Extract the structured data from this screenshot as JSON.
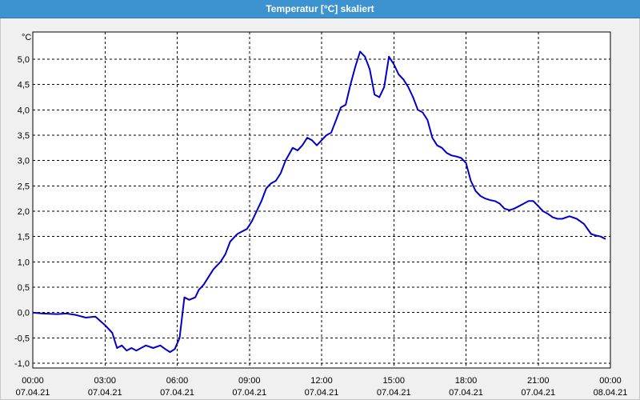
{
  "window": {
    "title": "Temperatur [°C] skaliert"
  },
  "colors": {
    "titlebar": "#3d93cf",
    "line": "#0000cc",
    "grid": "#000000",
    "background": "#f0f0f0"
  },
  "chart_data": {
    "type": "line",
    "title": "Temperatur [°C] skaliert",
    "ylabel": "°C",
    "xlabel": "",
    "ylim": [
      -1.0,
      5.5
    ],
    "xlim": [
      0,
      24
    ],
    "grid": true,
    "y_ticks": [
      "5,0",
      "4,5",
      "4,0",
      "3,5",
      "3,0",
      "2,5",
      "2,0",
      "1,5",
      "1,0",
      "0,5",
      "0,0",
      "-0,5",
      "-1,0"
    ],
    "y_tick_values": [
      5.0,
      4.5,
      4.0,
      3.5,
      3.0,
      2.5,
      2.0,
      1.5,
      1.0,
      0.5,
      0.0,
      -0.5,
      -1.0
    ],
    "x_ticks": [
      {
        "time": "00:00",
        "date": "07.04.21"
      },
      {
        "time": "03:00",
        "date": "07.04.21"
      },
      {
        "time": "06:00",
        "date": "07.04.21"
      },
      {
        "time": "09:00",
        "date": "07.04.21"
      },
      {
        "time": "12:00",
        "date": "07.04.21"
      },
      {
        "time": "15:00",
        "date": "07.04.21"
      },
      {
        "time": "18:00",
        "date": "07.04.21"
      },
      {
        "time": "21:00",
        "date": "07.04.21"
      },
      {
        "time": "00:00",
        "date": "08.04.21"
      }
    ],
    "series": [
      {
        "x": [
          0.0,
          0.4,
          1.0,
          1.4,
          1.8,
          2.2,
          2.6,
          3.0,
          3.3,
          3.5,
          3.7,
          3.9,
          4.1,
          4.3,
          4.5,
          4.7,
          5.0,
          5.3,
          5.5,
          5.7,
          5.9,
          6.1,
          6.3,
          6.5,
          6.75,
          6.9,
          7.1,
          7.3,
          7.5,
          7.8,
          8.0,
          8.2,
          8.5,
          8.7,
          8.9,
          9.1,
          9.3,
          9.5,
          9.7,
          9.9,
          10.1,
          10.3,
          10.5,
          10.8,
          11.0,
          11.2,
          11.4,
          11.6,
          11.8,
          12.0,
          12.2,
          12.4,
          12.6,
          12.8,
          13.0,
          13.2,
          13.4,
          13.6,
          13.8,
          14.0,
          14.2,
          14.4,
          14.6,
          14.8,
          15.0,
          15.2,
          15.4,
          15.6,
          15.8,
          16.0,
          16.2,
          16.4,
          16.6,
          16.8,
          17.0,
          17.2,
          17.4,
          17.6,
          17.8,
          18.0,
          18.2,
          18.4,
          18.6,
          18.8,
          19.0,
          19.2,
          19.4,
          19.6,
          19.8,
          20.0,
          20.2,
          20.4,
          20.6,
          20.8,
          21.0,
          21.2,
          21.4,
          21.6,
          21.8,
          22.0,
          22.3,
          22.6,
          22.9,
          23.2,
          23.4,
          23.6,
          23.8
        ],
        "y": [
          0.0,
          -0.02,
          -0.03,
          -0.02,
          -0.05,
          -0.1,
          -0.08,
          -0.25,
          -0.4,
          -0.7,
          -0.65,
          -0.75,
          -0.7,
          -0.75,
          -0.7,
          -0.65,
          -0.7,
          -0.65,
          -0.72,
          -0.78,
          -0.72,
          -0.5,
          0.3,
          0.25,
          0.3,
          0.45,
          0.55,
          0.7,
          0.85,
          1.0,
          1.15,
          1.4,
          1.55,
          1.6,
          1.65,
          1.8,
          2.0,
          2.2,
          2.45,
          2.55,
          2.6,
          2.75,
          3.0,
          3.25,
          3.2,
          3.3,
          3.45,
          3.4,
          3.3,
          3.4,
          3.5,
          3.55,
          3.8,
          4.05,
          4.1,
          4.5,
          4.85,
          5.15,
          5.05,
          4.8,
          4.3,
          4.25,
          4.45,
          5.05,
          4.9,
          4.7,
          4.6,
          4.45,
          4.25,
          4.0,
          3.95,
          3.8,
          3.45,
          3.3,
          3.25,
          3.15,
          3.1,
          3.08,
          3.05,
          2.95,
          2.6,
          2.4,
          2.3,
          2.25,
          2.22,
          2.2,
          2.15,
          2.05,
          2.02,
          2.05,
          2.1,
          2.15,
          2.2,
          2.2,
          2.1,
          2.0,
          1.95,
          1.88,
          1.85,
          1.85,
          1.9,
          1.85,
          1.75,
          1.55,
          1.52,
          1.5,
          1.45
        ]
      }
    ]
  }
}
